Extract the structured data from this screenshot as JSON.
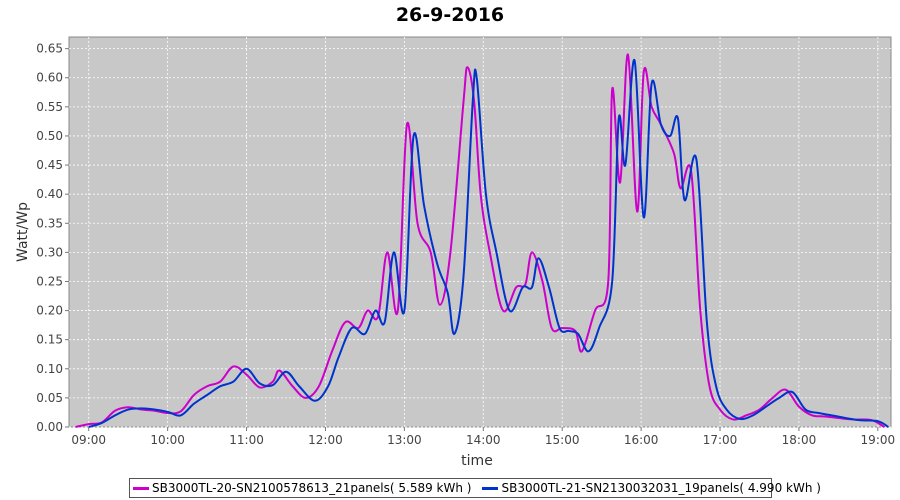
{
  "chart_data": {
    "type": "line",
    "title": "26-9-2016",
    "xlabel": "time",
    "ylabel": "Watt/Wp",
    "ylim": [
      0,
      0.67
    ],
    "xlim": [
      "08:45",
      "19:10"
    ],
    "x_ticks": [
      "09:00",
      "10:00",
      "11:00",
      "12:00",
      "13:00",
      "14:00",
      "15:00",
      "16:00",
      "17:00",
      "18:00",
      "19:00"
    ],
    "y_ticks": [
      "0.00",
      "0.05",
      "0.10",
      "0.15",
      "0.20",
      "0.25",
      "0.30",
      "0.35",
      "0.40",
      "0.45",
      "0.50",
      "0.55",
      "0.60",
      "0.65"
    ],
    "background": "#c8c8c8",
    "grid": true,
    "legend_position": "bottom",
    "series": [
      {
        "name": "SB3000TL-20-SN2100578613_21panels( 5.589 kWh )",
        "color": "#cc00cc",
        "points": [
          [
            "08:50",
            0.0
          ],
          [
            "09:00",
            0.005
          ],
          [
            "09:10",
            0.008
          ],
          [
            "09:20",
            0.028
          ],
          [
            "09:30",
            0.034
          ],
          [
            "09:40",
            0.03
          ],
          [
            "09:50",
            0.028
          ],
          [
            "10:00",
            0.024
          ],
          [
            "10:10",
            0.027
          ],
          [
            "10:20",
            0.055
          ],
          [
            "10:30",
            0.07
          ],
          [
            "10:40",
            0.078
          ],
          [
            "10:50",
            0.104
          ],
          [
            "11:00",
            0.09
          ],
          [
            "11:10",
            0.068
          ],
          [
            "11:20",
            0.078
          ],
          [
            "11:25",
            0.097
          ],
          [
            "11:35",
            0.07
          ],
          [
            "11:45",
            0.05
          ],
          [
            "11:55",
            0.07
          ],
          [
            "12:05",
            0.13
          ],
          [
            "12:15",
            0.18
          ],
          [
            "12:25",
            0.17
          ],
          [
            "12:32",
            0.2
          ],
          [
            "12:40",
            0.19
          ],
          [
            "12:47",
            0.3
          ],
          [
            "12:55",
            0.2
          ],
          [
            "13:02",
            0.52
          ],
          [
            "13:10",
            0.35
          ],
          [
            "13:20",
            0.3
          ],
          [
            "13:27",
            0.21
          ],
          [
            "13:35",
            0.3
          ],
          [
            "13:45",
            0.56
          ],
          [
            "13:48",
            0.618
          ],
          [
            "13:53",
            0.56
          ],
          [
            "13:58",
            0.4
          ],
          [
            "14:05",
            0.3
          ],
          [
            "14:15",
            0.2
          ],
          [
            "14:25",
            0.24
          ],
          [
            "14:32",
            0.245
          ],
          [
            "14:37",
            0.3
          ],
          [
            "14:45",
            0.25
          ],
          [
            "14:52",
            0.17
          ],
          [
            "15:00",
            0.17
          ],
          [
            "15:10",
            0.165
          ],
          [
            "15:15",
            0.13
          ],
          [
            "15:25",
            0.2
          ],
          [
            "15:35",
            0.25
          ],
          [
            "15:38",
            0.58
          ],
          [
            "15:44",
            0.42
          ],
          [
            "15:50",
            0.64
          ],
          [
            "15:57",
            0.37
          ],
          [
            "16:02",
            0.61
          ],
          [
            "16:08",
            0.55
          ],
          [
            "16:15",
            0.52
          ],
          [
            "16:25",
            0.47
          ],
          [
            "16:30",
            0.41
          ],
          [
            "16:38",
            0.44
          ],
          [
            "16:45",
            0.2
          ],
          [
            "16:52",
            0.07
          ],
          [
            "17:00",
            0.03
          ],
          [
            "17:10",
            0.013
          ],
          [
            "17:20",
            0.02
          ],
          [
            "17:30",
            0.03
          ],
          [
            "17:40",
            0.05
          ],
          [
            "17:50",
            0.064
          ],
          [
            "18:00",
            0.035
          ],
          [
            "18:10",
            0.02
          ],
          [
            "18:20",
            0.018
          ],
          [
            "18:40",
            0.013
          ],
          [
            "18:55",
            0.012
          ],
          [
            "19:05",
            0.0
          ]
        ]
      },
      {
        "name": "SB3000TL-21-SN2130032031_19panels( 4.990 kWh )",
        "color": "#0033cc",
        "points": [
          [
            "09:00",
            0.0
          ],
          [
            "09:10",
            0.007
          ],
          [
            "09:20",
            0.02
          ],
          [
            "09:30",
            0.03
          ],
          [
            "09:40",
            0.032
          ],
          [
            "09:50",
            0.03
          ],
          [
            "10:00",
            0.026
          ],
          [
            "10:10",
            0.02
          ],
          [
            "10:20",
            0.04
          ],
          [
            "10:30",
            0.055
          ],
          [
            "10:40",
            0.07
          ],
          [
            "10:50",
            0.078
          ],
          [
            "11:00",
            0.1
          ],
          [
            "11:10",
            0.075
          ],
          [
            "11:20",
            0.072
          ],
          [
            "11:30",
            0.095
          ],
          [
            "11:40",
            0.07
          ],
          [
            "11:52",
            0.045
          ],
          [
            "12:02",
            0.07
          ],
          [
            "12:10",
            0.12
          ],
          [
            "12:20",
            0.17
          ],
          [
            "12:30",
            0.16
          ],
          [
            "12:38",
            0.2
          ],
          [
            "12:45",
            0.18
          ],
          [
            "12:52",
            0.3
          ],
          [
            "13:00",
            0.2
          ],
          [
            "13:07",
            0.5
          ],
          [
            "13:15",
            0.38
          ],
          [
            "13:25",
            0.28
          ],
          [
            "13:33",
            0.23
          ],
          [
            "13:38",
            0.16
          ],
          [
            "13:45",
            0.26
          ],
          [
            "13:52",
            0.56
          ],
          [
            "13:55",
            0.6
          ],
          [
            "14:02",
            0.4
          ],
          [
            "14:10",
            0.3
          ],
          [
            "14:20",
            0.2
          ],
          [
            "14:30",
            0.24
          ],
          [
            "14:37",
            0.24
          ],
          [
            "14:42",
            0.29
          ],
          [
            "14:50",
            0.24
          ],
          [
            "14:58",
            0.17
          ],
          [
            "15:05",
            0.165
          ],
          [
            "15:12",
            0.16
          ],
          [
            "15:20",
            0.13
          ],
          [
            "15:28",
            0.17
          ],
          [
            "15:38",
            0.25
          ],
          [
            "15:43",
            0.53
          ],
          [
            "15:48",
            0.45
          ],
          [
            "15:55",
            0.63
          ],
          [
            "16:02",
            0.36
          ],
          [
            "16:08",
            0.59
          ],
          [
            "16:15",
            0.52
          ],
          [
            "16:22",
            0.5
          ],
          [
            "16:28",
            0.53
          ],
          [
            "16:33",
            0.39
          ],
          [
            "16:42",
            0.46
          ],
          [
            "16:50",
            0.18
          ],
          [
            "16:57",
            0.07
          ],
          [
            "17:05",
            0.03
          ],
          [
            "17:15",
            0.014
          ],
          [
            "17:25",
            0.02
          ],
          [
            "17:35",
            0.035
          ],
          [
            "17:45",
            0.05
          ],
          [
            "17:55",
            0.06
          ],
          [
            "18:05",
            0.03
          ],
          [
            "18:15",
            0.024
          ],
          [
            "18:25",
            0.02
          ],
          [
            "18:45",
            0.012
          ],
          [
            "19:00",
            0.01
          ],
          [
            "19:08",
            0.0
          ]
        ]
      }
    ]
  }
}
